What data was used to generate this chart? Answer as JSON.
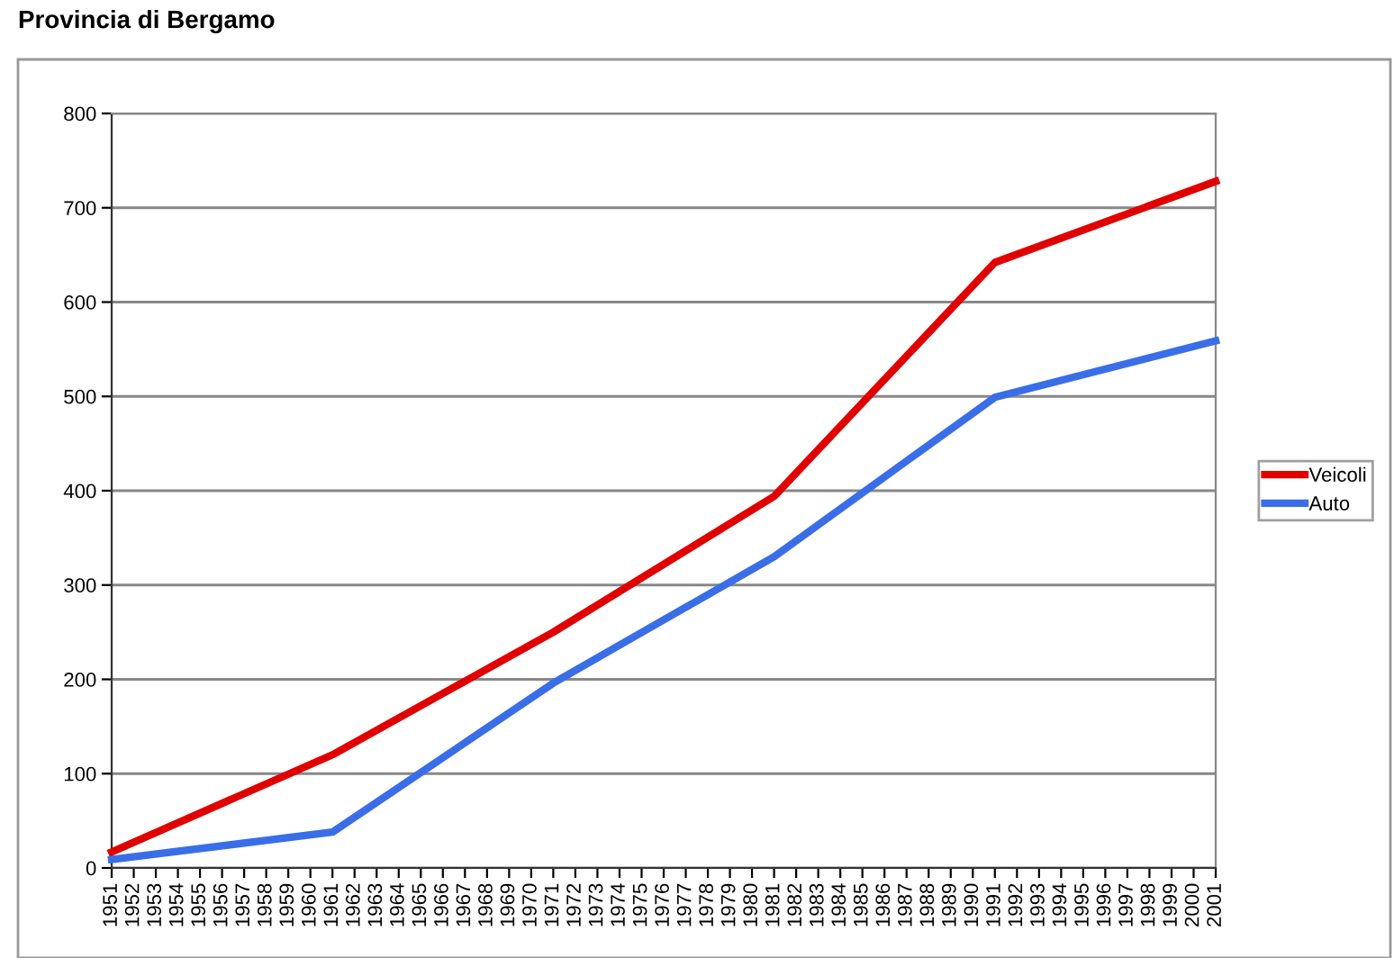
{
  "chart_data": {
    "type": "line",
    "title": "Provincia di Bergamo",
    "x": [
      1951,
      1961,
      1971,
      1981,
      1991,
      2001
    ],
    "series": [
      {
        "name": "Veicoli",
        "color": "#e00000",
        "values": [
          17,
          120,
          250,
          394,
          642,
          728
        ]
      },
      {
        "name": "Auto",
        "color": "#3a6ee8",
        "values": [
          9,
          38,
          196,
          330,
          499,
          559
        ]
      }
    ],
    "xlim": [
      1951,
      2001
    ],
    "xticks": [
      1951,
      1952,
      1953,
      1954,
      1955,
      1956,
      1957,
      1958,
      1959,
      1960,
      1961,
      1962,
      1963,
      1964,
      1965,
      1966,
      1967,
      1968,
      1969,
      1970,
      1971,
      1972,
      1973,
      1974,
      1975,
      1976,
      1977,
      1978,
      1979,
      1980,
      1981,
      1982,
      1983,
      1984,
      1985,
      1986,
      1987,
      1988,
      1989,
      1990,
      1991,
      1992,
      1993,
      1994,
      1995,
      1996,
      1997,
      1998,
      1999,
      2000,
      2001
    ],
    "ylim": [
      0,
      800
    ],
    "yticks": [
      0,
      100,
      200,
      300,
      400,
      500,
      600,
      700,
      800
    ],
    "grid": "y",
    "legend": "right",
    "marker": "none",
    "line_style": "solid"
  }
}
